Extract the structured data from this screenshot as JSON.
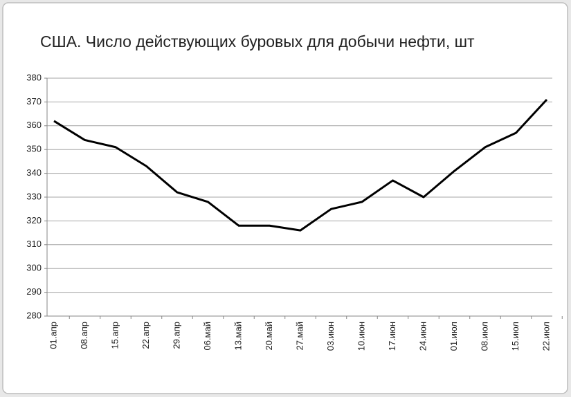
{
  "chart_data": {
    "type": "line",
    "title": "США. Число действующих буровых для добычи нефти, шт",
    "categories": [
      "01.апр",
      "08.апр",
      "15.апр",
      "22.апр",
      "29.апр",
      "06.май",
      "13.май",
      "20.май",
      "27.май",
      "03.июн",
      "10.июн",
      "17.июн",
      "24.июн",
      "01.июл",
      "08.июл",
      "15.июл",
      "22.июл"
    ],
    "values": [
      362,
      354,
      351,
      343,
      332,
      328,
      318,
      318,
      316,
      325,
      328,
      337,
      330,
      341,
      351,
      357,
      371
    ],
    "color": "#000000",
    "ylim": [
      280,
      380
    ],
    "yticks": [
      280,
      290,
      300,
      310,
      320,
      330,
      340,
      350,
      360,
      370,
      380
    ],
    "grid": true
  }
}
